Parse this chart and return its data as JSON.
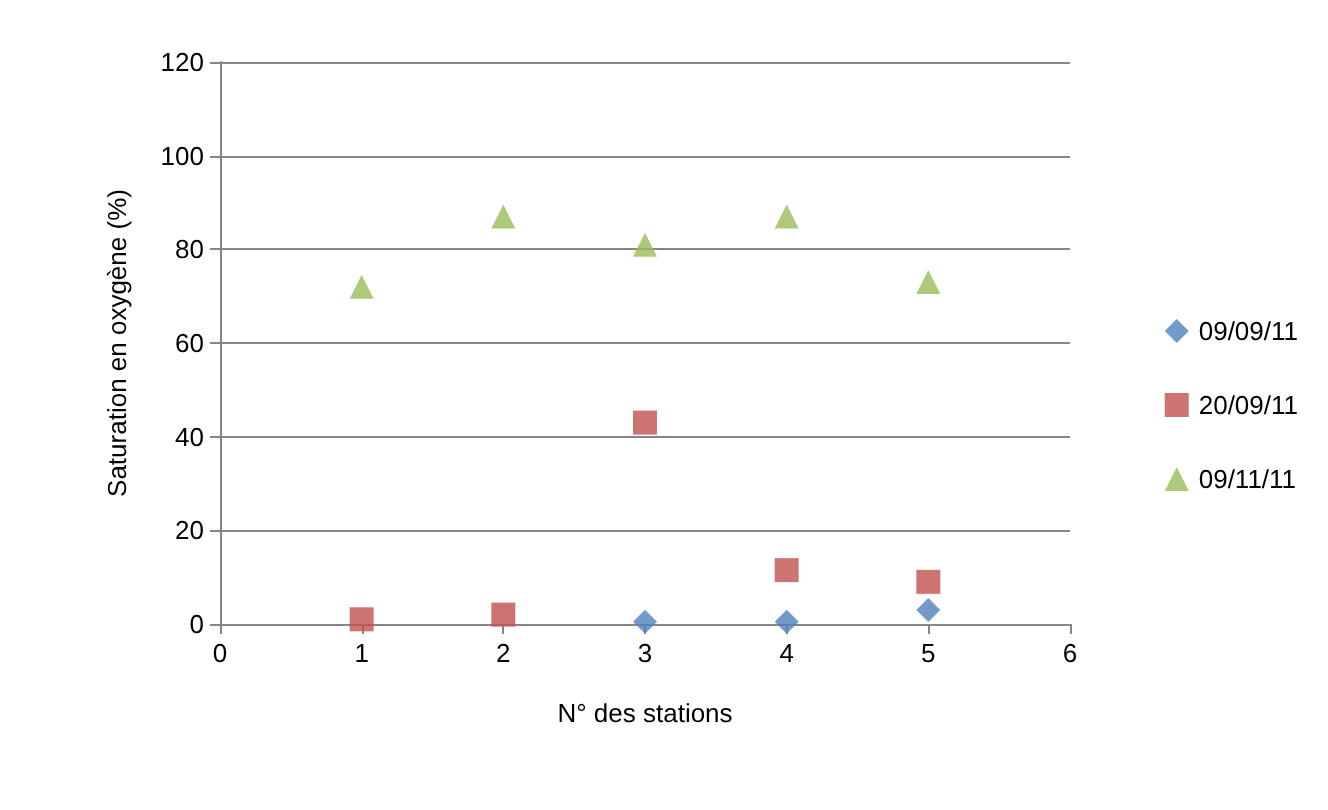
{
  "chart_data": {
    "type": "scatter",
    "xlabel": "N° des stations",
    "ylabel": "Saturation en oxygène (%)",
    "x": [
      1,
      2,
      3,
      4,
      5
    ],
    "xlim": [
      0,
      6
    ],
    "xticks": [
      0,
      1,
      2,
      3,
      4,
      5,
      6
    ],
    "ylim": [
      0,
      120
    ],
    "yticks": [
      0,
      20,
      40,
      60,
      80,
      100,
      120
    ],
    "grid": "y",
    "legend": "right",
    "series": [
      {
        "name": "09/09/11",
        "color": "#4f81bd",
        "marker": "diamond",
        "values": [
          null,
          null,
          0.5,
          0.5,
          3
        ]
      },
      {
        "name": "20/09/11",
        "color": "#c0504d",
        "marker": "square",
        "values": [
          1,
          2,
          43,
          11.5,
          9
        ]
      },
      {
        "name": "09/11/11",
        "color": "#9bbb59",
        "marker": "triangle",
        "values": [
          72,
          87,
          81,
          87,
          73
        ]
      }
    ]
  }
}
